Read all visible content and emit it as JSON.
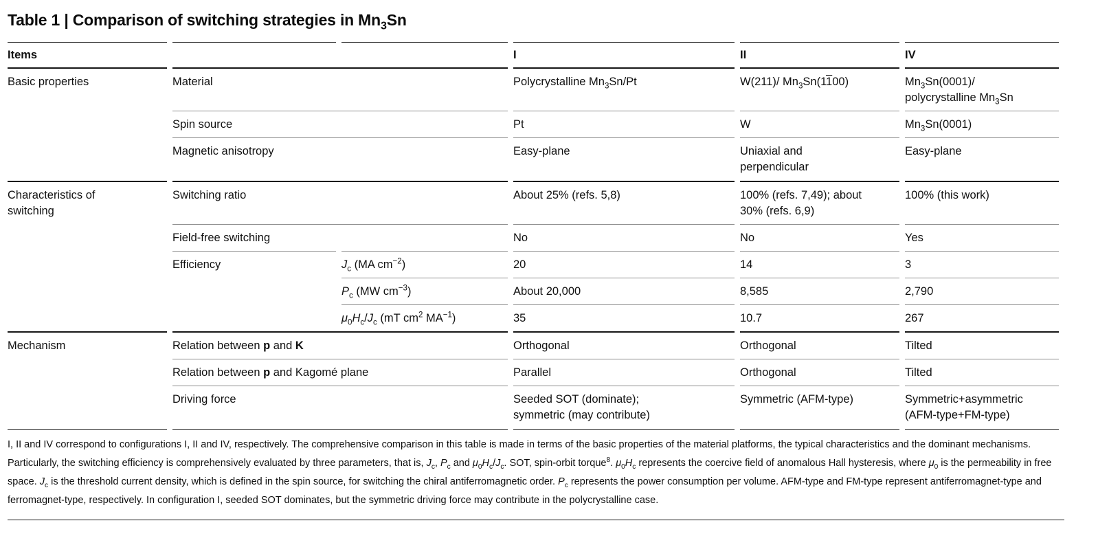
{
  "title": "Table 1 | Comparison of switching strategies in Mn~3~Sn",
  "table": {
    "header": {
      "items": "Items",
      "colI": "I",
      "colII": "II",
      "colIV": "IV"
    },
    "groups": [
      {
        "label": "Basic properties",
        "rows": [
          {
            "item": "Material",
            "I": "Polycrystalline Mn~3~Sn/Pt",
            "II": "W(211)/ Mn~3~Sn(1=1=00)",
            "IV": "Mn~3~Sn(0001)/\npolycrystalline Mn~3~Sn"
          },
          {
            "item": "Spin source",
            "I": "Pt",
            "II": "W",
            "IV": "Mn~3~Sn(0001)"
          },
          {
            "item": "Magnetic anisotropy",
            "I": "Easy-plane",
            "II": "Uniaxial and\nperpendicular",
            "IV": "Easy-plane"
          }
        ]
      },
      {
        "label": "Characteristics of\nswitching",
        "rows": [
          {
            "item": "Switching ratio",
            "I": "About 25% (refs. 5,8)",
            "II": "100% (refs. 7,49); about\n30% (refs. 6,9)",
            "IV": "100% (this work)"
          },
          {
            "item": "Field-free switching",
            "I": "No",
            "II": "No",
            "IV": "Yes"
          },
          {
            "item": "Efficiency",
            "param": "*J*~c~ (MA cm^−2^)",
            "I": "20",
            "II": "14",
            "IV": "3"
          },
          {
            "param": "*P*~c~ (MW cm^−3^)",
            "I": "About 20,000",
            "II": "8,585",
            "IV": "2,790"
          },
          {
            "param": "*μ*~0~*H*~c~/*J*~c~ (mT cm^2^ MA^−1^)",
            "I": "35",
            "II": "10.7",
            "IV": "267"
          }
        ]
      },
      {
        "label": "Mechanism",
        "rows": [
          {
            "item": "Relation between **p** and **K**",
            "I": "Orthogonal",
            "II": "Orthogonal",
            "IV": "Tilted"
          },
          {
            "item": "Relation between **p** and Kagomé plane",
            "I": "Parallel",
            "II": "Orthogonal",
            "IV": "Tilted"
          },
          {
            "item": "Driving force",
            "I": "Seeded SOT (dominate);\nsymmetric (may contribute)",
            "II": "Symmetric (AFM-type)",
            "IV": "Symmetric+asymmetric\n(AFM-type+FM-type)"
          }
        ]
      }
    ]
  },
  "footnote": "I, II and IV correspond to configurations I, II and IV, respectively. The comprehensive comparison in this table is made in terms of the basic properties of the material platforms, the typical characteristics and the dominant mechanisms. Particularly, the switching efficiency is comprehensively evaluated by three parameters, that is, *J*~c~, *P*~c~ and *μ*~0~*H*~c~/*J*~c~. SOT, spin-orbit torque^8^. *μ*~0~*H*~c~ represents the coercive field of anomalous Hall hysteresis, where *μ*~0~ is the permeability in free space. *J*~c~ is the threshold current density, which is defined in the spin source, for switching the chiral antiferromagnetic order. *P*~c~ represents the power consumption per volume. AFM-type and FM-type represent antiferromagnet-type and ferromagnet-type, respectively. In configuration I, seeded SOT dominates, but the symmetric driving force may contribute in the polycrystalline case."
}
